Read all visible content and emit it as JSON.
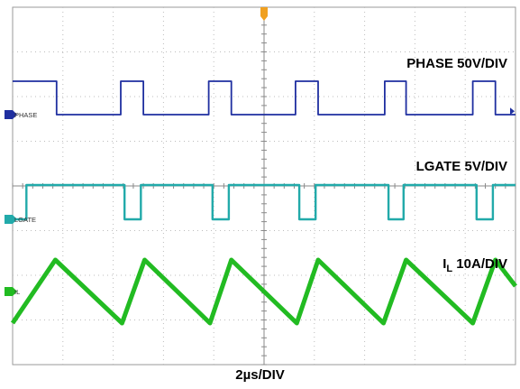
{
  "chart_data": {
    "type": "line",
    "title": "",
    "x_unit": "us",
    "xlim": [
      -10,
      10
    ],
    "timebase": "2µs/DIV",
    "grid": true,
    "trigger_marker_color": "#f0a020",
    "series": [
      {
        "name": "PHASE",
        "channel_tag": "PHASE",
        "scale_label": "PHASE 50V/DIV",
        "color": "#1f2fa0",
        "unit": "V",
        "levels": [
          0,
          50
        ],
        "x": [
          -10,
          -8.25,
          -8.25,
          -5.7,
          -5.7,
          -4.8,
          -4.8,
          -2.2,
          -2.2,
          -1.3,
          -1.3,
          1.25,
          1.25,
          2.15,
          2.15,
          4.8,
          4.8,
          5.65,
          5.65,
          8.3,
          8.3,
          9.2,
          9.2,
          10
        ],
        "values": [
          50,
          50,
          0,
          0,
          50,
          50,
          0,
          0,
          50,
          50,
          0,
          0,
          50,
          50,
          0,
          0,
          50,
          50,
          0,
          0,
          50,
          50,
          0,
          0
        ]
      },
      {
        "name": "LGATE",
        "channel_tag": "LGATE",
        "scale_label": "LGATE 5V/DIV",
        "color": "#22aaaa",
        "unit": "V",
        "levels": [
          0,
          5
        ],
        "x": [
          -10,
          -9.45,
          -9.45,
          -5.55,
          -5.55,
          -4.9,
          -4.9,
          -2.05,
          -2.05,
          -1.4,
          -1.4,
          1.4,
          1.4,
          2.05,
          2.05,
          4.95,
          4.95,
          5.55,
          5.55,
          8.45,
          8.45,
          9.1,
          9.1,
          10
        ],
        "values": [
          0,
          0,
          5,
          5,
          0,
          0,
          5,
          5,
          0,
          0,
          5,
          5,
          0,
          0,
          5,
          5,
          0,
          0,
          5,
          5,
          0,
          0,
          5,
          5
        ]
      },
      {
        "name": "IL",
        "channel_tag": "IL",
        "scale_label_main": "I",
        "scale_label_sub": "L",
        "scale_label_rest": " 10A/DIV",
        "color": "#22bb22",
        "unit": "A",
        "x": [
          -10,
          -8.3,
          -5.65,
          -4.75,
          -2.15,
          -1.3,
          1.3,
          2.15,
          4.75,
          5.65,
          8.3,
          9.2,
          10
        ],
        "values": [
          -3.5,
          3.5,
          -3.5,
          3.5,
          -3.5,
          3.5,
          -3.5,
          3.5,
          -3.5,
          3.5,
          -3.5,
          3.5,
          0.6
        ]
      }
    ]
  }
}
